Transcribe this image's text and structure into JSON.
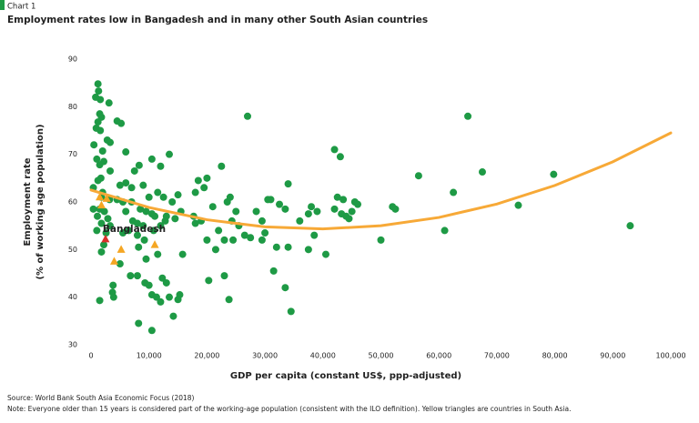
{
  "chart_data": {
    "type": "scatter",
    "chart_label": "Chart 1",
    "title": "Employment rates low in Bangadesh and in many other South Asian countries",
    "x_label": "GDP per capita (constant US$, ppp-adjusted)",
    "y_label": [
      "Employment rate",
      "(% of working age population)"
    ],
    "source": "Source: World Bank South Asia Economic Focus (2018)",
    "note": "Note: Everyone older than 15 years is considered part of the working-age population (consistent with the ILO definition). Yellow triangles are countries in South Asia.",
    "xlim": [
      0,
      100000
    ],
    "xticks": [
      0,
      {
        "value": 10000,
        "label": "10,000"
      },
      {
        "value": 20000,
        "label": "20,000"
      },
      {
        "value": 30000,
        "label": "30,000"
      },
      {
        "value": 40000,
        "label": "40,000"
      },
      {
        "value": 50000,
        "label": "50,000"
      },
      {
        "value": 60000,
        "label": "60,000"
      },
      {
        "value": 70000,
        "label": "70,000"
      },
      {
        "value": 80000,
        "label": "80,000"
      },
      {
        "value": 90000,
        "label": "90,000"
      },
      {
        "value": 100000,
        "label": "100,000"
      }
    ],
    "ylim": [
      30,
      90
    ],
    "yticks": [
      30,
      40,
      50,
      60,
      70,
      80,
      90
    ],
    "series": [
      {
        "color": "#1e9a45",
        "marker": "circle",
        "x": [
          1200,
          1300,
          800,
          1600,
          3100,
          1500,
          1800,
          1200,
          900,
          1600,
          2800,
          3300,
          500,
          2000,
          1000,
          2200,
          1500,
          3300,
          1700,
          1200,
          400,
          2000,
          1800,
          3200,
          400,
          1500,
          2300,
          1100,
          2900,
          1800,
          3300,
          1000,
          2600,
          2200,
          1800,
          1500,
          3800,
          3700,
          3900,
          4500,
          5200,
          6000,
          7500,
          8300,
          5000,
          6000,
          7000,
          9000,
          10000,
          10500,
          12000,
          13500,
          11500,
          12500,
          14000,
          15000,
          4500,
          5500,
          7000,
          8500,
          9500,
          11000,
          12800,
          14500,
          6000,
          7200,
          8000,
          9000,
          10500,
          13000,
          15500,
          5500,
          6500,
          8000,
          9200,
          10800,
          12000,
          8200,
          9500,
          11500,
          15800,
          5000,
          6800,
          8000,
          12300,
          13000,
          9300,
          10000,
          10500,
          11300,
          13500,
          15300,
          15000,
          12000,
          14200,
          8200,
          10500,
          17700,
          18500,
          19500,
          18000,
          19000,
          18000,
          20000,
          21000,
          22000,
          22500,
          23500,
          24000,
          25000,
          24300,
          25500,
          26500,
          27000,
          27500,
          28500,
          29500,
          30500,
          31000,
          32500,
          33500,
          34000,
          30000,
          29500,
          32000,
          23000,
          24500,
          20000,
          21500,
          20300,
          23000,
          23800,
          31500,
          33500,
          34500,
          34000,
          36000,
          37500,
          38000,
          39000,
          38500,
          37500,
          40500,
          42000,
          42500,
          43000,
          43500,
          44000,
          44500,
          45000,
          45500,
          46000,
          42000,
          43200,
          50000,
          52000,
          52500,
          56500,
          62500,
          65000,
          61000,
          67500,
          73700,
          79800,
          93000
        ],
        "values": [
          84.8,
          83.3,
          82,
          81.5,
          80.8,
          78.5,
          77.8,
          76.8,
          75.5,
          75,
          73,
          72.5,
          72,
          70.7,
          69,
          68.5,
          67.8,
          66.5,
          65,
          64.5,
          63,
          62,
          61,
          60.5,
          58.5,
          58.5,
          58,
          57,
          56.5,
          55.5,
          55,
          54,
          53.5,
          51,
          49.5,
          39.3,
          42.5,
          41,
          40,
          77,
          76.5,
          70.5,
          66.5,
          67.7,
          63.5,
          64,
          63,
          63.5,
          61,
          69,
          67.5,
          70,
          62,
          61,
          60,
          61.5,
          60.5,
          60,
          60,
          58.5,
          58,
          57,
          56,
          56.5,
          58,
          56,
          55.5,
          55,
          57.5,
          57,
          58,
          53.5,
          54,
          53,
          52,
          54,
          55,
          50.5,
          48,
          49,
          49,
          47,
          44.5,
          44.5,
          44,
          43,
          43,
          42.5,
          40.5,
          40,
          40,
          40.5,
          39.5,
          39,
          36,
          34.5,
          33,
          57,
          64.5,
          63,
          62,
          56,
          55.5,
          65,
          59,
          54,
          67.5,
          60,
          61,
          58,
          56,
          55,
          53,
          78,
          52.5,
          58,
          56,
          60.5,
          60.5,
          59.5,
          58.5,
          63.8,
          53.5,
          52,
          50.5,
          52,
          52,
          52,
          50,
          43.5,
          44.5,
          39.5,
          45.5,
          42,
          37,
          50.5,
          56,
          57.5,
          59,
          58,
          53,
          50,
          49,
          71,
          61,
          69.5,
          60.5,
          57,
          56.5,
          58,
          60,
          59.5,
          58.5,
          57.5,
          52,
          59,
          58.5,
          65.5,
          62,
          78,
          54,
          66.3,
          59.3,
          65.8,
          55
        ]
      },
      {
        "color": "#f5a623",
        "marker": "triangle",
        "x": [
          1500,
          1800,
          2700,
          4000,
          5200,
          11000
        ],
        "values": [
          61,
          59.3,
          60.7,
          47.5,
          50,
          51
        ]
      },
      {
        "name": "Bangladesh",
        "color": "#d9302a",
        "marker": "triangle",
        "x": [
          2500
        ],
        "values": [
          52.2
        ]
      }
    ],
    "trend": {
      "color": "#f7a937",
      "x": [
        0,
        10000,
        20000,
        30000,
        40000,
        50000,
        60000,
        70000,
        80000,
        90000,
        100000
      ],
      "values": [
        62.5,
        58.84,
        56.26,
        54.76,
        54.34,
        55.0,
        56.74,
        59.56,
        63.46,
        68.44,
        74.5
      ]
    }
  }
}
